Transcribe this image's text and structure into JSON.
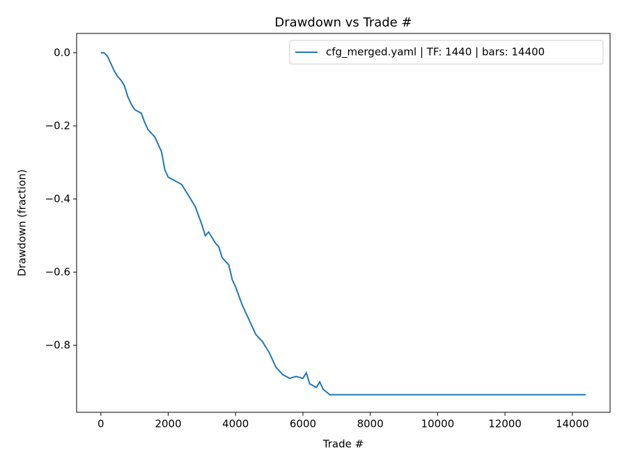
{
  "chart_data": {
    "type": "line",
    "title": "Drawdown vs Trade #",
    "x_label": "Trade #",
    "y_label": "Drawdown (fraction)",
    "x": [
      0,
      100,
      200,
      300,
      400,
      500,
      600,
      700,
      800,
      900,
      1000,
      1200,
      1300,
      1400,
      1600,
      1800,
      1900,
      2000,
      2200,
      2400,
      2600,
      2800,
      3000,
      3100,
      3200,
      3400,
      3500,
      3600,
      3800,
      3900,
      4000,
      4200,
      4400,
      4600,
      4800,
      5000,
      5200,
      5400,
      5600,
      5800,
      6000,
      6100,
      6200,
      6400,
      6500,
      6600,
      6800,
      14400
    ],
    "series": [
      {
        "name": "cfg_merged.yaml | TF: 1440 | bars: 14400",
        "color": "#1f77b4",
        "values": [
          0,
          0,
          -0.01,
          -0.03,
          -0.05,
          -0.065,
          -0.075,
          -0.09,
          -0.12,
          -0.14,
          -0.155,
          -0.165,
          -0.19,
          -0.21,
          -0.23,
          -0.27,
          -0.32,
          -0.34,
          -0.35,
          -0.36,
          -0.39,
          -0.42,
          -0.47,
          -0.5,
          -0.49,
          -0.52,
          -0.53,
          -0.56,
          -0.58,
          -0.62,
          -0.64,
          -0.69,
          -0.73,
          -0.77,
          -0.79,
          -0.82,
          -0.86,
          -0.88,
          -0.89,
          -0.885,
          -0.89,
          -0.875,
          -0.905,
          -0.915,
          -0.9,
          -0.92,
          -0.935,
          -0.935
        ]
      }
    ],
    "xlim": [
      -720,
      15120
    ],
    "ylim": [
      -0.983,
      0.053
    ],
    "xticks": [
      0,
      2000,
      4000,
      6000,
      8000,
      10000,
      12000,
      14000
    ],
    "yticks": [
      {
        "value": 0,
        "label": "0.0"
      },
      {
        "value": -0.2,
        "label": "−0.2"
      },
      {
        "value": -0.4,
        "label": "−0.4"
      },
      {
        "value": -0.6,
        "label": "−0.6"
      },
      {
        "value": -0.8,
        "label": "−0.8"
      }
    ],
    "legend": "upper right"
  }
}
